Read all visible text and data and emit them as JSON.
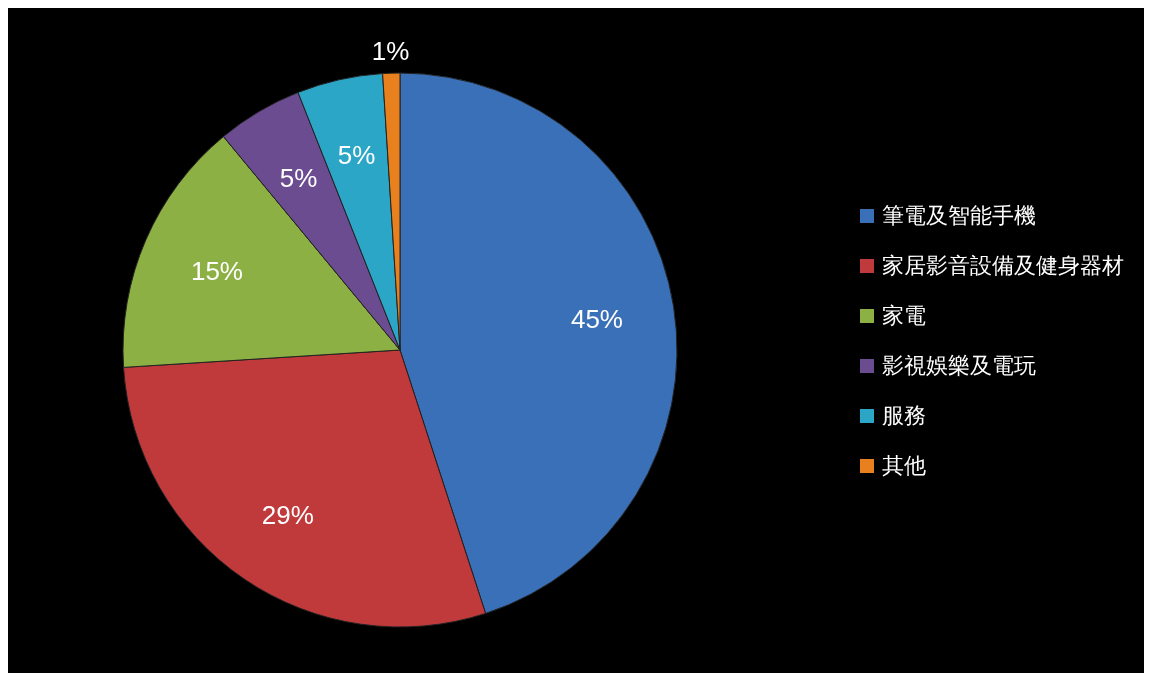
{
  "chart_data": {
    "type": "pie",
    "categories": [
      "筆電及智能手機",
      "家居影音設備及健身器材",
      "家電",
      "影視娛樂及電玩",
      "服務",
      "其他"
    ],
    "values": [
      45,
      29,
      15,
      5,
      5,
      1
    ],
    "colors": [
      "#3a70b8",
      "#c0393b",
      "#8cb043",
      "#6b4c90",
      "#2ba6c6",
      "#e8801e"
    ],
    "value_labels": [
      "45%",
      "29%",
      "15%",
      "5%",
      "5%",
      "1%"
    ],
    "legend": "right"
  }
}
